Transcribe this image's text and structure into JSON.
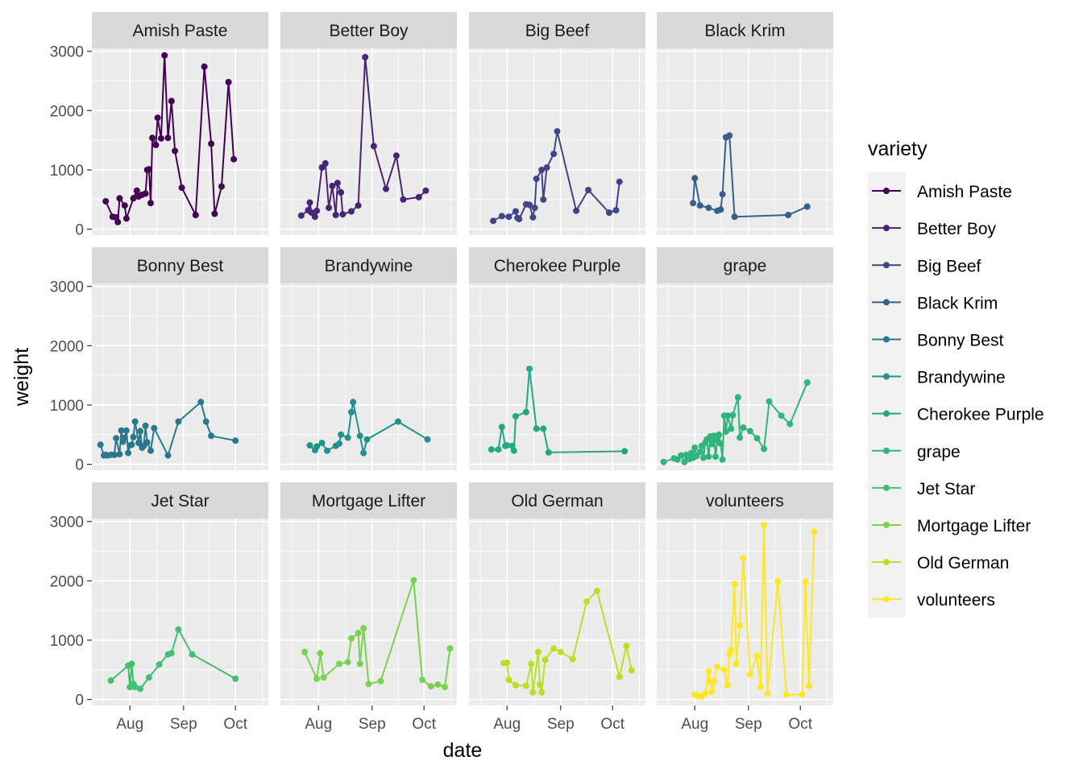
{
  "chart_data": {
    "type": "line",
    "facet_by": "variety",
    "xlabel": "date",
    "ylabel": "weight",
    "x_ticks": [
      "Aug",
      "Sep",
      "Oct"
    ],
    "x_tick_dates": [
      "2020-08-01",
      "2020-09-01",
      "2020-10-01"
    ],
    "xlim": [
      "2020-07-10",
      "2020-10-20"
    ],
    "y_ticks": [
      0,
      1000,
      2000,
      3000
    ],
    "ylim": [
      -100,
      3050
    ],
    "grid": true,
    "legend": {
      "title": "variety",
      "position": "right"
    },
    "panels": [
      {
        "name": "Amish Paste",
        "color": "#440154",
        "points": [
          [
            "2020-07-18",
            470
          ],
          [
            "2020-07-22",
            210
          ],
          [
            "2020-07-24",
            200
          ],
          [
            "2020-07-25",
            120
          ],
          [
            "2020-07-26",
            520
          ],
          [
            "2020-07-29",
            400
          ],
          [
            "2020-07-30",
            180
          ],
          [
            "2020-08-03",
            520
          ],
          [
            "2020-08-05",
            650
          ],
          [
            "2020-08-06",
            550
          ],
          [
            "2020-08-08",
            580
          ],
          [
            "2020-08-10",
            600
          ],
          [
            "2020-08-11",
            1000
          ],
          [
            "2020-08-12",
            1010
          ],
          [
            "2020-08-13",
            440
          ],
          [
            "2020-08-14",
            1540
          ],
          [
            "2020-08-16",
            1420
          ],
          [
            "2020-08-17",
            1880
          ],
          [
            "2020-08-19",
            1530
          ],
          [
            "2020-08-21",
            2930
          ],
          [
            "2020-08-23",
            1540
          ],
          [
            "2020-08-25",
            2160
          ],
          [
            "2020-08-27",
            1320
          ],
          [
            "2020-08-31",
            700
          ],
          [
            "2020-09-08",
            240
          ],
          [
            "2020-09-13",
            2740
          ],
          [
            "2020-09-17",
            1440
          ],
          [
            "2020-09-19",
            260
          ],
          [
            "2020-09-23",
            720
          ],
          [
            "2020-09-27",
            2480
          ],
          [
            "2020-09-30",
            1180
          ]
        ]
      },
      {
        "name": "Better Boy",
        "color": "#482576",
        "points": [
          [
            "2020-07-22",
            230
          ],
          [
            "2020-07-26",
            320
          ],
          [
            "2020-07-27",
            450
          ],
          [
            "2020-07-28",
            280
          ],
          [
            "2020-07-30",
            210
          ],
          [
            "2020-07-31",
            310
          ],
          [
            "2020-08-03",
            1040
          ],
          [
            "2020-08-05",
            1110
          ],
          [
            "2020-08-07",
            360
          ],
          [
            "2020-08-09",
            730
          ],
          [
            "2020-08-11",
            240
          ],
          [
            "2020-08-12",
            780
          ],
          [
            "2020-08-14",
            620
          ],
          [
            "2020-08-15",
            250
          ],
          [
            "2020-08-20",
            300
          ],
          [
            "2020-08-24",
            400
          ],
          [
            "2020-08-28",
            2900
          ],
          [
            "2020-09-02",
            1400
          ],
          [
            "2020-09-09",
            680
          ],
          [
            "2020-09-15",
            1240
          ],
          [
            "2020-09-19",
            500
          ],
          [
            "2020-09-28",
            540
          ],
          [
            "2020-10-02",
            650
          ]
        ]
      },
      {
        "name": "Big Beef",
        "color": "#414487",
        "points": [
          [
            "2020-07-24",
            140
          ],
          [
            "2020-07-29",
            220
          ],
          [
            "2020-08-02",
            210
          ],
          [
            "2020-08-06",
            300
          ],
          [
            "2020-08-07",
            190
          ],
          [
            "2020-08-08",
            170
          ],
          [
            "2020-08-12",
            420
          ],
          [
            "2020-08-14",
            410
          ],
          [
            "2020-08-16",
            200
          ],
          [
            "2020-08-17",
            360
          ],
          [
            "2020-08-18",
            850
          ],
          [
            "2020-08-21",
            1000
          ],
          [
            "2020-08-22",
            500
          ],
          [
            "2020-08-24",
            1040
          ],
          [
            "2020-08-28",
            1270
          ],
          [
            "2020-08-30",
            1650
          ],
          [
            "2020-09-10",
            310
          ],
          [
            "2020-09-17",
            660
          ],
          [
            "2020-09-29",
            280
          ],
          [
            "2020-10-03",
            320
          ],
          [
            "2020-10-05",
            800
          ]
        ]
      },
      {
        "name": "Black Krim",
        "color": "#355F8D",
        "points": [
          [
            "2020-07-31",
            440
          ],
          [
            "2020-08-01",
            860
          ],
          [
            "2020-08-04",
            400
          ],
          [
            "2020-08-09",
            360
          ],
          [
            "2020-08-14",
            310
          ],
          [
            "2020-08-16",
            330
          ],
          [
            "2020-08-17",
            590
          ],
          [
            "2020-08-19",
            1550
          ],
          [
            "2020-08-21",
            1580
          ],
          [
            "2020-08-24",
            210
          ],
          [
            "2020-09-24",
            240
          ],
          [
            "2020-10-05",
            380
          ]
        ]
      },
      {
        "name": "Bonny Best",
        "color": "#2A788E",
        "points": [
          [
            "2020-07-15",
            330
          ],
          [
            "2020-07-17",
            150
          ],
          [
            "2020-07-18",
            160
          ],
          [
            "2020-07-19",
            150
          ],
          [
            "2020-07-21",
            160
          ],
          [
            "2020-07-23",
            160
          ],
          [
            "2020-07-24",
            440
          ],
          [
            "2020-07-26",
            170
          ],
          [
            "2020-07-27",
            570
          ],
          [
            "2020-07-28",
            380
          ],
          [
            "2020-07-29",
            450
          ],
          [
            "2020-07-30",
            570
          ],
          [
            "2020-07-31",
            190
          ],
          [
            "2020-08-01",
            320
          ],
          [
            "2020-08-02",
            330
          ],
          [
            "2020-08-03",
            460
          ],
          [
            "2020-08-04",
            720
          ],
          [
            "2020-08-06",
            360
          ],
          [
            "2020-08-07",
            560
          ],
          [
            "2020-08-08",
            280
          ],
          [
            "2020-08-09",
            310
          ],
          [
            "2020-08-10",
            650
          ],
          [
            "2020-08-11",
            370
          ],
          [
            "2020-08-13",
            230
          ],
          [
            "2020-08-15",
            610
          ],
          [
            "2020-08-23",
            150
          ],
          [
            "2020-08-29",
            720
          ],
          [
            "2020-09-11",
            1050
          ],
          [
            "2020-09-14",
            720
          ],
          [
            "2020-09-17",
            480
          ],
          [
            "2020-10-01",
            400
          ]
        ]
      },
      {
        "name": "Brandywine",
        "color": "#21918C",
        "points": [
          [
            "2020-07-27",
            320
          ],
          [
            "2020-07-30",
            240
          ],
          [
            "2020-07-31",
            300
          ],
          [
            "2020-08-03",
            360
          ],
          [
            "2020-08-06",
            230
          ],
          [
            "2020-08-11",
            310
          ],
          [
            "2020-08-13",
            350
          ],
          [
            "2020-08-14",
            500
          ],
          [
            "2020-08-18",
            450
          ],
          [
            "2020-08-20",
            880
          ],
          [
            "2020-08-21",
            1050
          ],
          [
            "2020-08-25",
            480
          ],
          [
            "2020-08-27",
            190
          ],
          [
            "2020-08-29",
            420
          ],
          [
            "2020-09-16",
            720
          ],
          [
            "2020-10-03",
            420
          ]
        ]
      },
      {
        "name": "Cherokee Purple",
        "color": "#22A884",
        "points": [
          [
            "2020-07-23",
            250
          ],
          [
            "2020-07-27",
            250
          ],
          [
            "2020-07-29",
            630
          ],
          [
            "2020-07-31",
            310
          ],
          [
            "2020-08-01",
            320
          ],
          [
            "2020-08-04",
            310
          ],
          [
            "2020-08-05",
            230
          ],
          [
            "2020-08-06",
            810
          ],
          [
            "2020-08-12",
            880
          ],
          [
            "2020-08-14",
            1610
          ],
          [
            "2020-08-18",
            600
          ],
          [
            "2020-08-22",
            600
          ],
          [
            "2020-08-25",
            200
          ],
          [
            "2020-10-08",
            220
          ]
        ]
      },
      {
        "name": "grape",
        "color": "#2FB47C",
        "points": [
          [
            "2020-07-14",
            40
          ],
          [
            "2020-07-20",
            100
          ],
          [
            "2020-07-22",
            80
          ],
          [
            "2020-07-24",
            150
          ],
          [
            "2020-07-26",
            40
          ],
          [
            "2020-07-27",
            160
          ],
          [
            "2020-07-28",
            130
          ],
          [
            "2020-07-29",
            90
          ],
          [
            "2020-07-30",
            190
          ],
          [
            "2020-07-31",
            110
          ],
          [
            "2020-08-01",
            280
          ],
          [
            "2020-08-02",
            140
          ],
          [
            "2020-08-04",
            210
          ],
          [
            "2020-08-05",
            310
          ],
          [
            "2020-08-06",
            110
          ],
          [
            "2020-08-07",
            360
          ],
          [
            "2020-08-08",
            420
          ],
          [
            "2020-08-09",
            130
          ],
          [
            "2020-08-10",
            470
          ],
          [
            "2020-08-11",
            340
          ],
          [
            "2020-08-12",
            480
          ],
          [
            "2020-08-13",
            130
          ],
          [
            "2020-08-14",
            410
          ],
          [
            "2020-08-15",
            500
          ],
          [
            "2020-08-16",
            350
          ],
          [
            "2020-08-17",
            80
          ],
          [
            "2020-08-18",
            820
          ],
          [
            "2020-08-19",
            550
          ],
          [
            "2020-08-20",
            820
          ],
          [
            "2020-08-22",
            600
          ],
          [
            "2020-08-23",
            830
          ],
          [
            "2020-08-26",
            1130
          ],
          [
            "2020-08-27",
            450
          ],
          [
            "2020-08-29",
            620
          ],
          [
            "2020-09-02",
            560
          ],
          [
            "2020-09-06",
            440
          ],
          [
            "2020-09-10",
            260
          ],
          [
            "2020-09-13",
            1060
          ],
          [
            "2020-09-20",
            820
          ],
          [
            "2020-09-25",
            680
          ],
          [
            "2020-10-05",
            1380
          ]
        ]
      },
      {
        "name": "Jet Star",
        "color": "#44BF70",
        "points": [
          [
            "2020-07-21",
            320
          ],
          [
            "2020-07-31",
            570
          ],
          [
            "2020-08-01",
            210
          ],
          [
            "2020-08-02",
            600
          ],
          [
            "2020-08-03",
            260
          ],
          [
            "2020-08-04",
            210
          ],
          [
            "2020-08-07",
            180
          ],
          [
            "2020-08-12",
            370
          ],
          [
            "2020-08-18",
            590
          ],
          [
            "2020-08-23",
            760
          ],
          [
            "2020-08-25",
            780
          ],
          [
            "2020-08-29",
            1180
          ],
          [
            "2020-09-06",
            760
          ],
          [
            "2020-10-01",
            350
          ]
        ]
      },
      {
        "name": "Mortgage Lifter",
        "color": "#7AD151",
        "points": [
          [
            "2020-07-24",
            800
          ],
          [
            "2020-07-31",
            350
          ],
          [
            "2020-08-02",
            780
          ],
          [
            "2020-08-04",
            370
          ],
          [
            "2020-08-13",
            600
          ],
          [
            "2020-08-18",
            630
          ],
          [
            "2020-08-20",
            1030
          ],
          [
            "2020-08-24",
            1120
          ],
          [
            "2020-08-25",
            600
          ],
          [
            "2020-08-27",
            1200
          ],
          [
            "2020-08-30",
            260
          ],
          [
            "2020-09-06",
            310
          ],
          [
            "2020-09-25",
            2010
          ],
          [
            "2020-09-30",
            330
          ],
          [
            "2020-10-05",
            220
          ],
          [
            "2020-10-09",
            250
          ],
          [
            "2020-10-13",
            210
          ],
          [
            "2020-10-16",
            860
          ]
        ]
      },
      {
        "name": "Old German",
        "color": "#BBDF27",
        "points": [
          [
            "2020-07-30",
            610
          ],
          [
            "2020-08-01",
            620
          ],
          [
            "2020-08-02",
            330
          ],
          [
            "2020-08-06",
            240
          ],
          [
            "2020-08-12",
            230
          ],
          [
            "2020-08-15",
            600
          ],
          [
            "2020-08-16",
            120
          ],
          [
            "2020-08-19",
            800
          ],
          [
            "2020-08-20",
            250
          ],
          [
            "2020-08-21",
            120
          ],
          [
            "2020-08-23",
            670
          ],
          [
            "2020-08-28",
            860
          ],
          [
            "2020-09-01",
            800
          ],
          [
            "2020-09-08",
            680
          ],
          [
            "2020-09-16",
            1650
          ],
          [
            "2020-09-22",
            1830
          ],
          [
            "2020-10-05",
            380
          ],
          [
            "2020-10-09",
            900
          ],
          [
            "2020-10-12",
            490
          ]
        ]
      },
      {
        "name": "volunteers",
        "color": "#FDE725",
        "points": [
          [
            "2020-08-01",
            80
          ],
          [
            "2020-08-03",
            60
          ],
          [
            "2020-08-05",
            50
          ],
          [
            "2020-08-07",
            100
          ],
          [
            "2020-08-09",
            470
          ],
          [
            "2020-08-10",
            300
          ],
          [
            "2020-08-11",
            130
          ],
          [
            "2020-08-12",
            300
          ],
          [
            "2020-08-14",
            550
          ],
          [
            "2020-08-18",
            500
          ],
          [
            "2020-08-20",
            240
          ],
          [
            "2020-08-21",
            760
          ],
          [
            "2020-08-22",
            830
          ],
          [
            "2020-08-24",
            1950
          ],
          [
            "2020-08-25",
            600
          ],
          [
            "2020-08-27",
            1250
          ],
          [
            "2020-08-29",
            2380
          ],
          [
            "2020-09-02",
            420
          ],
          [
            "2020-09-06",
            730
          ],
          [
            "2020-09-08",
            210
          ],
          [
            "2020-09-10",
            2940
          ],
          [
            "2020-09-12",
            100
          ],
          [
            "2020-09-18",
            1990
          ],
          [
            "2020-09-23",
            80
          ],
          [
            "2020-10-02",
            80
          ],
          [
            "2020-10-04",
            1980
          ],
          [
            "2020-10-06",
            230
          ],
          [
            "2020-10-09",
            2830
          ]
        ]
      }
    ]
  }
}
